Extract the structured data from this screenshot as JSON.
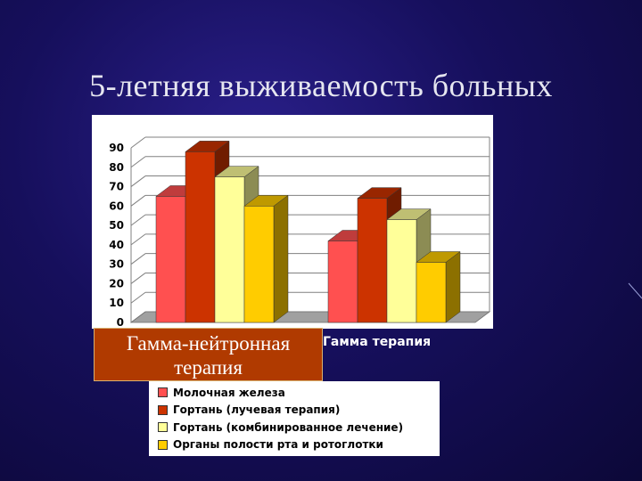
{
  "slide": {
    "title": "5-летняя выживаемость больных"
  },
  "chart_data": {
    "type": "bar",
    "categories": [
      "Гамма-нейтронная терапия",
      "Гамма терапия"
    ],
    "series": [
      {
        "name": "Молочная железа",
        "values": [
          65,
          42
        ],
        "color": "#ff5050"
      },
      {
        "name": "Гортань (лучевая терапия)",
        "values": [
          88,
          64
        ],
        "color": "#cc3300"
      },
      {
        "name": "Гортань (комбинированное лечение)",
        "values": [
          75,
          53
        ],
        "color": "#ffff99"
      },
      {
        "name": "Органы полости рта и ротоглотки",
        "values": [
          60,
          31
        ],
        "color": "#ffcc00"
      }
    ],
    "yticks": [
      "0",
      "10",
      "20",
      "30",
      "40",
      "50",
      "60",
      "70",
      "80",
      "90"
    ],
    "ylim": [
      0,
      90
    ],
    "grid": true,
    "legend_position": "bottom"
  }
}
